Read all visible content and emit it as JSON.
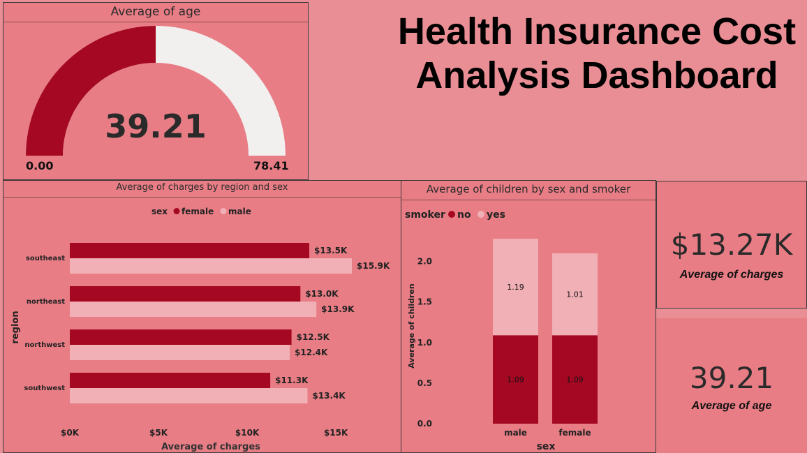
{
  "dashboard_title": "Health Insurance Cost Analysis Dashboard",
  "colors": {
    "background": "#e98e94",
    "panel": "#e87d85",
    "dark_red": "#a50822",
    "light_pink": "#f0b0b6",
    "gauge_track": "#f2efef"
  },
  "gauge": {
    "title": "Average of age",
    "value": 39.21,
    "value_label": "39.21",
    "min_label": "0.00",
    "max_label": "78.41",
    "min": 0,
    "max": 78.41
  },
  "cards": {
    "charges": {
      "value": "$13.27K",
      "label": "Average of charges"
    },
    "age": {
      "value": "39.21",
      "label": "Average of age"
    }
  },
  "chart_data": [
    {
      "type": "bar",
      "orientation": "horizontal",
      "title": "Average of charges by region and sex",
      "legend_title": "sex",
      "legend_position": "top",
      "xlabel": "Average of charges",
      "ylabel": "region",
      "categories": [
        "southeast",
        "northeast",
        "northwest",
        "southwest"
      ],
      "series": [
        {
          "name": "female",
          "color": "#a50822",
          "values": [
            13500,
            13000,
            12500,
            11300
          ],
          "labels": [
            "$13.5K",
            "$13.0K",
            "$12.5K",
            "$11.3K"
          ]
        },
        {
          "name": "male",
          "color": "#f0b0b6",
          "values": [
            15900,
            13900,
            12400,
            13400
          ],
          "labels": [
            "$15.9K",
            "$13.9K",
            "$12.4K",
            "$13.4K"
          ]
        }
      ],
      "xlim": [
        0,
        15900
      ],
      "x_ticks": [
        {
          "value": 0,
          "label": "$0K"
        },
        {
          "value": 5000,
          "label": "$5K"
        },
        {
          "value": 10000,
          "label": "$10K"
        },
        {
          "value": 15000,
          "label": "$15K"
        }
      ],
      "grid": false
    },
    {
      "type": "bar",
      "stacked": true,
      "title": "Average of children by sex and smoker",
      "legend_title": "smoker",
      "legend_position": "top-left",
      "xlabel": "sex",
      "ylabel": "Average of children",
      "categories": [
        "male",
        "female"
      ],
      "series": [
        {
          "name": "no",
          "color": "#a50822",
          "values": [
            1.09,
            1.09
          ],
          "labels": [
            "1.09",
            "1.09"
          ]
        },
        {
          "name": "yes",
          "color": "#f0b0b6",
          "values": [
            1.19,
            1.01
          ],
          "labels": [
            "1.19",
            "1.01"
          ]
        }
      ],
      "ylim": [
        0,
        2.28
      ],
      "y_ticks": [
        {
          "value": 0,
          "label": "0.0"
        },
        {
          "value": 0.5,
          "label": "0.5"
        },
        {
          "value": 1,
          "label": "1.0"
        },
        {
          "value": 1.5,
          "label": "1.5"
        },
        {
          "value": 2,
          "label": "2.0"
        }
      ],
      "grid": false
    }
  ]
}
